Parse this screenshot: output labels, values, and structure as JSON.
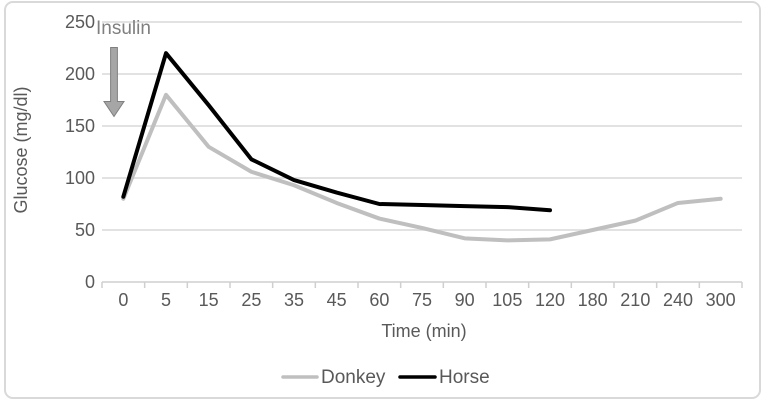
{
  "frame": {
    "background": "#ffffff",
    "border_color": "#d9d9d9"
  },
  "styles": {
    "gridline_color": "#d9d9d9",
    "axis_line_color": "#cfcfcf",
    "tick_text_color": "#595959"
  },
  "chart_data": {
    "type": "line",
    "title": "",
    "xlabel": "Time (min)",
    "ylabel": "Glucose (mg/dl)",
    "categories": [
      "0",
      "5",
      "15",
      "25",
      "35",
      "45",
      "60",
      "75",
      "90",
      "105",
      "120",
      "180",
      "210",
      "240",
      "300"
    ],
    "ylim": [
      0,
      250
    ],
    "y_ticks": [
      0,
      50,
      100,
      150,
      200,
      250
    ],
    "grid": "horizontal",
    "legend_position": "bottom-center",
    "series": [
      {
        "name": "Donkey",
        "color": "#bfbfbf",
        "values": [
          80,
          180,
          130,
          106,
          93,
          76,
          61,
          52,
          42,
          40,
          41,
          50,
          59,
          76,
          80
        ]
      },
      {
        "name": "Horse",
        "color": "#000000",
        "values": [
          82,
          220,
          170,
          118,
          98,
          86,
          75,
          74,
          73,
          72,
          69,
          null,
          null,
          null,
          null
        ]
      }
    ],
    "annotation": {
      "label": "Insulin",
      "type": "down-arrow",
      "x_category": "0",
      "label_color": "#7f7f7f",
      "arrow_fill": "#a6a6a6",
      "arrow_outline": "#7f7f7f"
    }
  }
}
